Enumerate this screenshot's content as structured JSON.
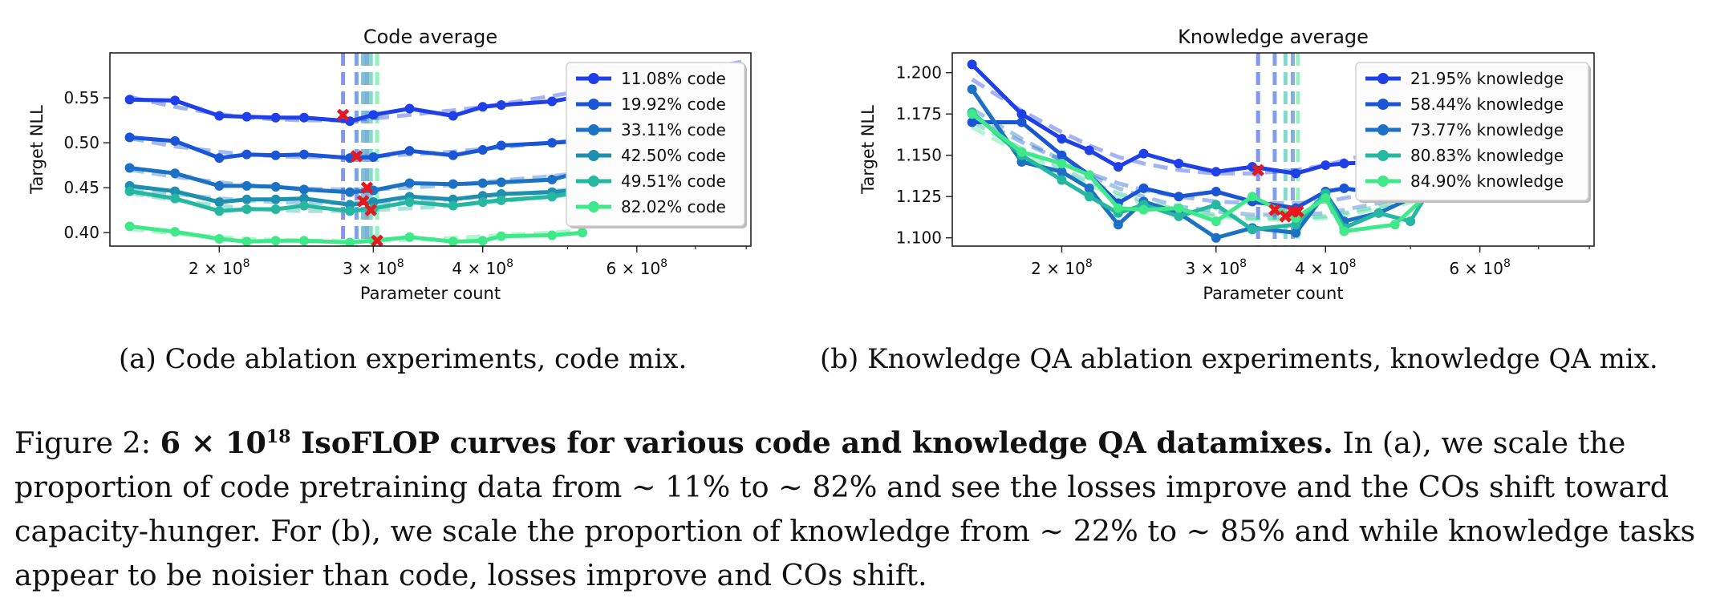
{
  "chart_data": [
    {
      "type": "line",
      "title": "Code average",
      "xlabel": "Parameter count",
      "ylabel": "Target NLL",
      "xscale": "log",
      "xlim": [
        150000000,
        810000000
      ],
      "ylim": [
        0.385,
        0.6
      ],
      "yticks": [
        "0.40",
        "0.45",
        "0.50",
        "0.55"
      ],
      "xticks": [
        {
          "value": 200000000,
          "mant": "2",
          "exp": "8"
        },
        {
          "value": 300000000,
          "mant": "3",
          "exp": "8"
        },
        {
          "value": 400000000,
          "mant": "4",
          "exp": "8"
        },
        {
          "value": 600000000,
          "mant": "6",
          "exp": "8"
        }
      ],
      "legend_position": "top-right",
      "series": [
        {
          "name": "11.08% code",
          "color": "#1f3fe8",
          "x": [
            158000000.0,
            178000000.0,
            200000000.0,
            215000000.0,
            232000000.0,
            250000000.0,
            282000000.0,
            300000000.0,
            330000000.0,
            370000000.0,
            400000000.0,
            420000000.0,
            480000000.0,
            520000000.0,
            790000000.0
          ],
          "y": [
            0.548,
            0.547,
            0.53,
            0.529,
            0.528,
            0.528,
            0.524,
            0.531,
            0.538,
            0.53,
            0.54,
            0.542,
            0.546,
            0.552,
            0.583
          ],
          "fit": [
            0.551,
            0.54,
            0.532,
            0.528,
            0.526,
            0.525,
            0.525,
            0.527,
            0.531,
            0.536,
            0.54,
            0.543,
            0.552,
            0.558,
            0.59
          ],
          "optimum_x": 277000000.0,
          "optimum_y": 0.531
        },
        {
          "name": "19.92% code",
          "color": "#1a55d6",
          "x": [
            158000000.0,
            178000000.0,
            200000000.0,
            215000000.0,
            232000000.0,
            250000000.0,
            282000000.0,
            300000000.0,
            330000000.0,
            370000000.0,
            400000000.0,
            420000000.0,
            480000000.0,
            520000000.0
          ],
          "y": [
            0.506,
            0.502,
            0.483,
            0.487,
            0.486,
            0.487,
            0.483,
            0.484,
            0.491,
            0.486,
            0.492,
            0.497,
            0.5,
            0.502
          ],
          "fit": [
            0.505,
            0.496,
            0.49,
            0.487,
            0.485,
            0.484,
            0.484,
            0.485,
            0.487,
            0.49,
            0.493,
            0.495,
            0.5,
            0.504
          ],
          "optimum_x": 287000000.0,
          "optimum_y": 0.485
        },
        {
          "name": "33.11% code",
          "color": "#1d71c4",
          "x": [
            158000000.0,
            178000000.0,
            200000000.0,
            215000000.0,
            232000000.0,
            250000000.0,
            282000000.0,
            300000000.0,
            330000000.0,
            370000000.0,
            400000000.0,
            420000000.0,
            480000000.0,
            520000000.0
          ],
          "y": [
            0.472,
            0.466,
            0.452,
            0.452,
            0.451,
            0.448,
            0.445,
            0.447,
            0.455,
            0.454,
            0.455,
            0.456,
            0.459,
            0.468
          ],
          "fit": [
            0.47,
            0.462,
            0.456,
            0.453,
            0.451,
            0.449,
            0.448,
            0.448,
            0.45,
            0.453,
            0.456,
            0.458,
            0.463,
            0.467
          ],
          "optimum_x": 295000000.0,
          "optimum_y": 0.45
        },
        {
          "name": "42.50% code",
          "color": "#1e8fae",
          "x": [
            158000000.0,
            178000000.0,
            200000000.0,
            215000000.0,
            232000000.0,
            250000000.0,
            282000000.0,
            300000000.0,
            330000000.0,
            370000000.0,
            400000000.0,
            420000000.0,
            480000000.0,
            520000000.0
          ],
          "y": [
            0.452,
            0.446,
            0.434,
            0.437,
            0.437,
            0.438,
            0.431,
            0.434,
            0.44,
            0.437,
            0.441,
            0.443,
            0.445,
            0.448
          ],
          "fit": [
            0.45,
            0.443,
            0.438,
            0.436,
            0.434,
            0.433,
            0.433,
            0.433,
            0.435,
            0.437,
            0.44,
            0.442,
            0.446,
            0.45
          ],
          "optimum_x": 292000000.0,
          "optimum_y": 0.435
        },
        {
          "name": "49.51% code",
          "color": "#26b7a0",
          "x": [
            158000000.0,
            178000000.0,
            200000000.0,
            215000000.0,
            232000000.0,
            250000000.0,
            282000000.0,
            300000000.0,
            330000000.0,
            370000000.0,
            400000000.0,
            420000000.0,
            480000000.0,
            520000000.0
          ],
          "y": [
            0.446,
            0.438,
            0.424,
            0.426,
            0.426,
            0.43,
            0.424,
            0.427,
            0.434,
            0.43,
            0.434,
            0.436,
            0.44,
            0.446
          ],
          "fit": [
            0.444,
            0.436,
            0.43,
            0.427,
            0.425,
            0.424,
            0.424,
            0.425,
            0.427,
            0.43,
            0.433,
            0.435,
            0.44,
            0.444
          ],
          "optimum_x": 298000000.0,
          "optimum_y": 0.425
        },
        {
          "name": "82.02% code",
          "color": "#3fe98a",
          "x": [
            158000000.0,
            178000000.0,
            200000000.0,
            215000000.0,
            232000000.0,
            250000000.0,
            282000000.0,
            300000000.0,
            330000000.0,
            370000000.0,
            400000000.0,
            420000000.0,
            480000000.0,
            520000000.0
          ],
          "y": [
            0.407,
            0.401,
            0.393,
            0.39,
            0.391,
            0.391,
            0.389,
            0.391,
            0.395,
            0.39,
            0.391,
            0.396,
            0.397,
            0.4
          ],
          "fit": [
            0.404,
            0.399,
            0.395,
            0.393,
            0.392,
            0.391,
            0.391,
            0.391,
            0.392,
            0.394,
            0.396,
            0.397,
            0.4,
            0.403
          ],
          "optimum_x": 303000000.0,
          "optimum_y": 0.391
        }
      ]
    },
    {
      "type": "line",
      "title": "Knowledge average",
      "xlabel": "Parameter count",
      "ylabel": "Target NLL",
      "xscale": "log",
      "xlim": [
        150000000,
        810000000
      ],
      "ylim": [
        1.095,
        1.212
      ],
      "yticks": [
        "1.100",
        "1.125",
        "1.150",
        "1.175",
        "1.200"
      ],
      "xticks": [
        {
          "value": 200000000,
          "mant": "2",
          "exp": "8"
        },
        {
          "value": 300000000,
          "mant": "3",
          "exp": "8"
        },
        {
          "value": 400000000,
          "mant": "4",
          "exp": "8"
        },
        {
          "value": 600000000,
          "mant": "6",
          "exp": "8"
        }
      ],
      "legend_position": "top-right",
      "series": [
        {
          "name": "21.95% knowledge",
          "color": "#1f3fe8",
          "x": [
            158000000.0,
            180000000.0,
            200000000.0,
            215000000.0,
            232000000.0,
            248000000.0,
            272000000.0,
            300000000.0,
            330000000.0,
            370000000.0,
            400000000.0,
            420000000.0,
            460000000.0,
            520000000.0
          ],
          "y": [
            1.205,
            1.175,
            1.16,
            1.153,
            1.143,
            1.151,
            1.145,
            1.14,
            1.143,
            1.139,
            1.144,
            1.145,
            1.146,
            1.15
          ],
          "fit": [
            1.196,
            1.177,
            1.164,
            1.156,
            1.149,
            1.145,
            1.141,
            1.139,
            1.139,
            1.141,
            1.144,
            1.147,
            1.152,
            1.16
          ],
          "optimum_x": 335000000.0,
          "optimum_y": 1.141
        },
        {
          "name": "58.44% knowledge",
          "color": "#1a55d6",
          "x": [
            158000000.0,
            180000000.0,
            200000000.0,
            215000000.0,
            232000000.0,
            248000000.0,
            272000000.0,
            300000000.0,
            330000000.0,
            370000000.0,
            400000000.0,
            420000000.0,
            460000000.0,
            520000000.0
          ],
          "y": [
            1.17,
            1.17,
            1.15,
            1.138,
            1.121,
            1.13,
            1.125,
            1.128,
            1.122,
            1.118,
            1.128,
            1.13,
            1.127,
            1.13
          ],
          "fit": [
            1.174,
            1.158,
            1.147,
            1.139,
            1.133,
            1.129,
            1.125,
            1.122,
            1.121,
            1.121,
            1.122,
            1.124,
            1.128,
            1.134
          ],
          "optimum_x": 350000000.0,
          "optimum_y": 1.117
        },
        {
          "name": "73.77% knowledge",
          "color": "#1d71c4",
          "x": [
            158000000.0,
            180000000.0,
            200000000.0,
            215000000.0,
            232000000.0,
            248000000.0,
            272000000.0,
            300000000.0,
            330000000.0,
            370000000.0,
            400000000.0,
            420000000.0,
            460000000.0,
            520000000.0
          ],
          "y": [
            1.19,
            1.146,
            1.14,
            1.13,
            1.108,
            1.122,
            1.115,
            1.1,
            1.106,
            1.103,
            1.127,
            1.11,
            1.115,
            1.128
          ],
          "fit": [
            1.178,
            1.16,
            1.147,
            1.138,
            1.13,
            1.125,
            1.119,
            1.116,
            1.114,
            1.114,
            1.115,
            1.117,
            1.121,
            1.128
          ],
          "optimum_x": 367000000.0,
          "optimum_y": 1.116
        },
        {
          "name": "80.83% knowledge",
          "color": "#26b7a0",
          "x": [
            158000000.0,
            180000000.0,
            200000000.0,
            215000000.0,
            232000000.0,
            248000000.0,
            272000000.0,
            300000000.0,
            330000000.0,
            370000000.0,
            400000000.0,
            420000000.0,
            460000000.0,
            500000000.0,
            520000000.0
          ],
          "y": [
            1.176,
            1.15,
            1.135,
            1.125,
            1.115,
            1.12,
            1.113,
            1.12,
            1.105,
            1.108,
            1.127,
            1.106,
            1.115,
            1.11,
            1.125
          ],
          "fit": [
            1.17,
            1.154,
            1.142,
            1.134,
            1.127,
            1.122,
            1.117,
            1.114,
            1.112,
            1.112,
            1.113,
            1.115,
            1.119,
            1.123,
            1.126
          ],
          "optimum_x": 360000000.0,
          "optimum_y": 1.113
        },
        {
          "name": "84.90% knowledge",
          "color": "#3fe98a",
          "x": [
            158000000.0,
            180000000.0,
            200000000.0,
            215000000.0,
            232000000.0,
            248000000.0,
            272000000.0,
            300000000.0,
            330000000.0,
            370000000.0,
            400000000.0,
            420000000.0,
            480000000.0,
            520000000.0
          ],
          "y": [
            1.175,
            1.152,
            1.145,
            1.138,
            1.118,
            1.117,
            1.118,
            1.11,
            1.125,
            1.112,
            1.124,
            1.104,
            1.108,
            1.125
          ],
          "fit": [
            1.167,
            1.151,
            1.14,
            1.132,
            1.125,
            1.121,
            1.116,
            1.113,
            1.111,
            1.111,
            1.112,
            1.114,
            1.119,
            1.124
          ],
          "optimum_x": 372000000.0,
          "optimum_y": 1.116
        }
      ]
    }
  ],
  "captions": {
    "a": "(a) Code ablation experiments, code mix.",
    "b": "(b) Knowledge QA ablation experiments, knowledge QA mix."
  },
  "main_caption": {
    "prefix": "Figure 2: ",
    "bold_base": "6 × 10",
    "bold_exp": "18",
    "bold_rest": " IsoFLOP curves for various code and knowledge QA datamixes.",
    "text": " In (a), we scale the proportion of code pretraining data from ∼ 11% to ∼ 82% and see the losses improve and the COs shift toward capacity-hunger. For (b), we scale the proportion of knowledge from ∼ 22% to ∼ 85% and while knowledge tasks appear to be noisier than code, losses improve and COs shift."
  }
}
